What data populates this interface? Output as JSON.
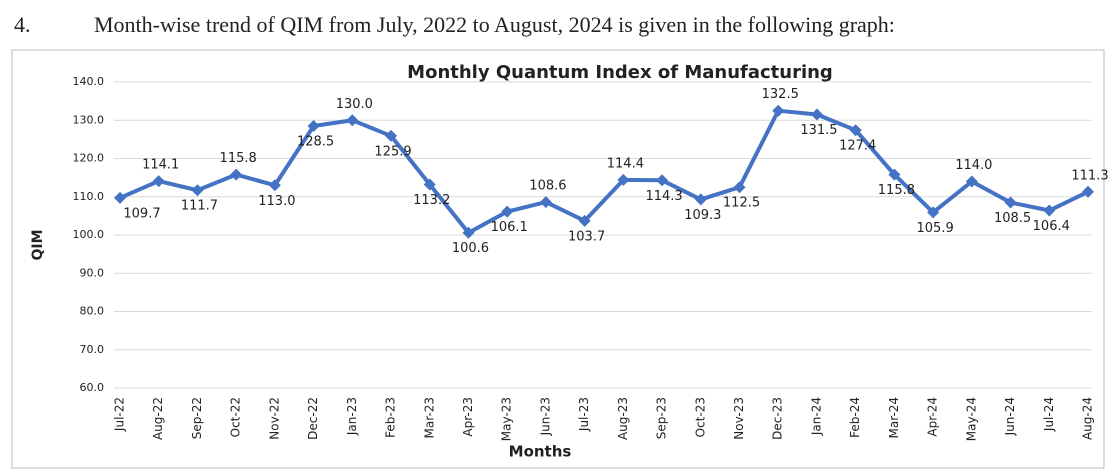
{
  "heading": {
    "number": "4.",
    "text": "Month-wise trend of QIM from July, 2022 to August, 2024 is given in the following graph:"
  },
  "chart_data": {
    "type": "line",
    "title": "Monthly Quantum Index of Manufacturing",
    "x_label": "Months",
    "y_label": "QIM",
    "categories": [
      "Jul-22",
      "Aug-22",
      "Sep-22",
      "Oct-22",
      "Nov-22",
      "Dec-22",
      "Jan-23",
      "Feb-23",
      "Mar-23",
      "Apr-23",
      "May-23",
      "Jun-23",
      "Jul-23",
      "Aug-23",
      "Sep-23",
      "Oct-23",
      "Nov-23",
      "Dec-23",
      "Jan-24",
      "Feb-24",
      "Mar-24",
      "Apr-24",
      "May-24",
      "Jun-24",
      "Jul-24",
      "Aug-24"
    ],
    "series": [
      {
        "name": "QIM",
        "color": "#4472c4",
        "values": [
          109.7,
          114.1,
          111.7,
          115.8,
          113,
          128.5,
          130,
          125.9,
          113.2,
          100.6,
          106.1,
          108.6,
          103.7,
          114.4,
          114.3,
          109.3,
          112.5,
          132.5,
          131.5,
          127.4,
          115.8,
          105.9,
          114,
          108.5,
          106.4,
          111.3
        ],
        "value_labels": [
          "109.7",
          "114.1",
          "111.7",
          "115.8",
          "113.0",
          "128.5",
          "130.0",
          "125.9",
          "113.2",
          "100.6",
          "106.1",
          "108.6",
          "103.7",
          "114.4",
          "114.3",
          "109.3",
          "112.5",
          "132.5",
          "131.5",
          "127.4",
          "115.8",
          "105.9",
          "114.0",
          "108.5",
          "106.4",
          "111.3"
        ]
      }
    ],
    "ylim": [
      60,
      140
    ],
    "yticks": [
      {
        "value": 60,
        "label": "60.0"
      },
      {
        "value": 70,
        "label": "70.0"
      },
      {
        "value": 80,
        "label": "80.0"
      },
      {
        "value": 90,
        "label": "90.0"
      },
      {
        "value": 100,
        "label": "100.0"
      },
      {
        "value": 110,
        "label": "110.0"
      },
      {
        "value": 120,
        "label": "120.0"
      },
      {
        "value": 130,
        "label": "130.0"
      },
      {
        "value": 140,
        "label": "140.0"
      }
    ],
    "grid": true
  }
}
